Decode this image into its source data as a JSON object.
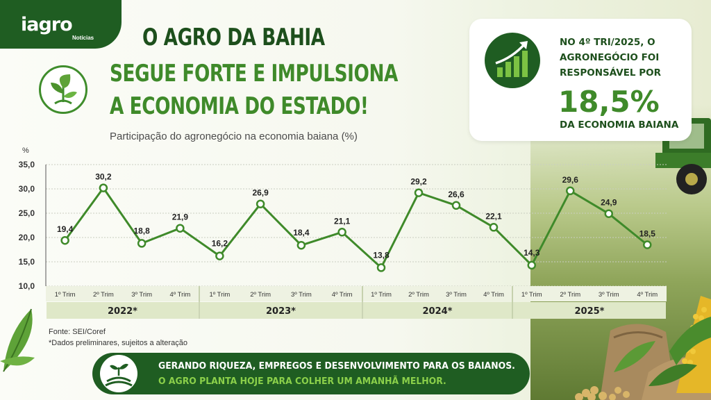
{
  "brand": {
    "logo_text": "iagro",
    "logo_sub": "Notícias"
  },
  "headline": {
    "line1": "O AGRO DA BAHIA",
    "line2": "SEGUE FORTE E IMPULSIONA",
    "line3": "A ECONOMIA DO ESTADO!"
  },
  "subtitle": "Participação do agronegócio na economia baiana (%)",
  "callout": {
    "line1": "NO 4º TRI/2025, O",
    "line2": "AGRONEGÓCIO FOI",
    "line3": "RESPONSÁVEL POR",
    "big_value": "18,5%",
    "line4": "DA ECONOMIA BAIANA",
    "icon": "growth-bars-arrow-icon"
  },
  "chart_data": {
    "type": "line",
    "ylabel": "%",
    "ylim": [
      10,
      35
    ],
    "yticks": [
      "35,0",
      "30,0",
      "25,0",
      "20,0",
      "15,0",
      "10,0"
    ],
    "grid": true,
    "categories": [
      "1º Trim",
      "2º Trim",
      "3º Trim",
      "4º Trim",
      "1º Trim",
      "2º Trim",
      "3º Trim",
      "4º Trim",
      "1º Trim",
      "2º Trim",
      "3º Trim",
      "4º Trim",
      "1º Trim",
      "2º Trim",
      "3º Trim",
      "4º Trim"
    ],
    "groups": [
      "2022*",
      "2023*",
      "2024*",
      "2025*"
    ],
    "values": [
      19.4,
      30.2,
      18.8,
      21.9,
      16.2,
      26.9,
      18.4,
      21.1,
      13.8,
      29.2,
      26.6,
      22.1,
      14.3,
      29.6,
      24.9,
      18.5
    ],
    "data_labels": [
      "19,4",
      "30,2",
      "18,8",
      "21,9",
      "16,2",
      "26,9",
      "18,4",
      "21,1",
      "13,8",
      "29,2",
      "26,6",
      "22,1",
      "14,3",
      "29,6",
      "24,9",
      "18,5"
    ],
    "line_color": "#3f8a2a"
  },
  "source": {
    "line1": "Fonte: SEI/Coref",
    "line2": "*Dados preliminares, sujeitos a alteração"
  },
  "banner": {
    "line1": "GERANDO RIQUEZA, EMPREGOS E DESENVOLVIMENTO PARA OS BAIANOS.",
    "line2": "O AGRO PLANTA HOJE PARA COLHER UM AMANHÃ MELHOR.",
    "icon": "sprout-field-icon"
  },
  "colors": {
    "dark_green": "#1f5d22",
    "green": "#3f8a2a",
    "light_green": "#8bd04a",
    "band": "#dfe8c8"
  }
}
